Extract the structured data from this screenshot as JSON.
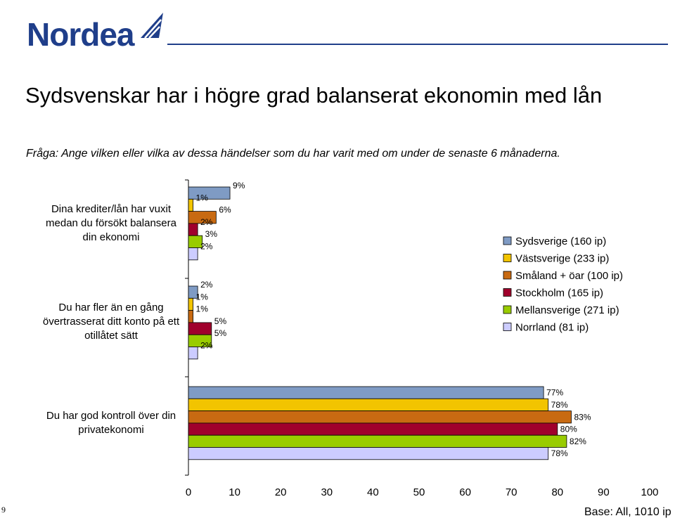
{
  "header": {
    "logo": "Nordea",
    "title": "Sydsvenskar har i högre grad balanserat ekonomin med lån",
    "question": "Fråga: Ange vilken eller vilka av dessa händelser som du har varit med om under de senaste 6 månaderna.",
    "page_number": "9",
    "base_note": "Base: All, 1010 ip"
  },
  "colors": {
    "brand": "#1f3e8a",
    "series": [
      "#7f9bc4",
      "#f2c400",
      "#c86a12",
      "#a0002c",
      "#99cc00",
      "#ccccff"
    ]
  },
  "chart_data": {
    "type": "bar",
    "orientation": "horizontal",
    "categories": [
      "Dina krediter/lån har vuxit medan du försökt balansera din ekonomi",
      "Du har fler än en gång övertrasserat ditt konto på ett otillåtet sätt",
      "Du har god kontroll över din privatekonomi"
    ],
    "series": [
      {
        "name": "Sydsverige (160 ip)",
        "values": [
          9,
          2,
          77
        ],
        "labels": [
          "9%",
          "2%",
          "77%"
        ]
      },
      {
        "name": "Västsverige (233 ip)",
        "values": [
          1,
          1,
          78
        ],
        "labels": [
          "1%",
          "1%",
          "78%"
        ]
      },
      {
        "name": "Småland + öar (100 ip)",
        "values": [
          6,
          1,
          83
        ],
        "labels": [
          "6%",
          "1%",
          "83%"
        ]
      },
      {
        "name": "Stockholm (165 ip)",
        "values": [
          2,
          5,
          80
        ],
        "labels": [
          "2%",
          "5%",
          "80%"
        ]
      },
      {
        "name": "Mellansverige (271 ip)",
        "values": [
          3,
          5,
          82
        ],
        "labels": [
          "3%",
          "5%",
          "82%"
        ]
      },
      {
        "name": "Norrland (81 ip)",
        "values": [
          2,
          2,
          78
        ],
        "labels": [
          "2%",
          "2%",
          "78%"
        ]
      }
    ],
    "xlim": [
      0,
      100
    ],
    "xticks": [
      "0",
      "10",
      "20",
      "30",
      "40",
      "50",
      "60",
      "70",
      "80",
      "90",
      "100"
    ],
    "legend_position": "right",
    "grid": false
  }
}
